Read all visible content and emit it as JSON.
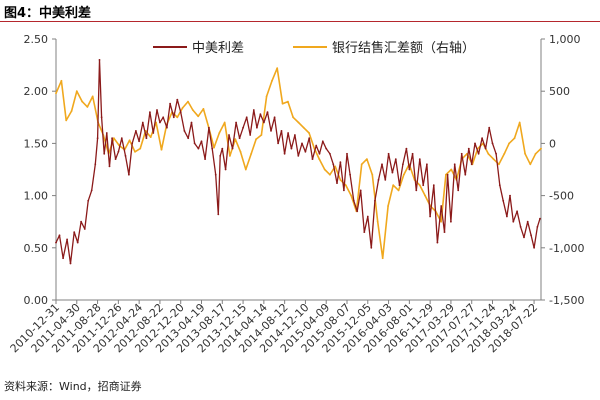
{
  "figure": {
    "title": "图4：中美利差",
    "source": "资料来源：Wind，招商证券"
  },
  "colors": {
    "accent": "#b5272d",
    "series1": "#8b1a1a",
    "series2": "#f0a81e",
    "axis": "#808080"
  },
  "chart_data": {
    "type": "line",
    "title": "",
    "xlabel": "",
    "ylabel": "",
    "legend_position": "top-center",
    "grid": false,
    "x_ticks": [
      "2010-12-31",
      "2011-04-30",
      "2011-08-28",
      "2011-12-26",
      "2012-04-24",
      "2012-08-22",
      "2012-12-20",
      "2013-04-19",
      "2013-08-17",
      "2013-12-15",
      "2014-04-14",
      "2014-08-12",
      "2014-12-10",
      "2015-04-09",
      "2015-08-07",
      "2015-12-05",
      "2016-04-03",
      "2016-08-01",
      "2016-11-29",
      "2017-03-29",
      "2017-07-27",
      "2017-11-24",
      "2018-03-24",
      "2018-07-22"
    ],
    "y_left": {
      "ylim": [
        0,
        2.5
      ],
      "ticks": [
        "0.00",
        "0.50",
        "1.00",
        "1.50",
        "2.00",
        "2.50"
      ]
    },
    "y_right": {
      "ylim": [
        -1500,
        1000
      ],
      "ticks": [
        "-1,500",
        "-1,000",
        "-500",
        "0",
        "500",
        "1,000"
      ]
    },
    "series": [
      {
        "name": "中美利差",
        "axis": "left",
        "x": [
          "2010-12-31",
          "2011-01-20",
          "2011-02-10",
          "2011-03-05",
          "2011-03-25",
          "2011-04-15",
          "2011-05-05",
          "2011-05-25",
          "2011-06-15",
          "2011-07-05",
          "2011-07-25",
          "2011-08-15",
          "2011-08-28",
          "2011-09-08",
          "2011-09-20",
          "2011-10-05",
          "2011-10-20",
          "2011-11-05",
          "2011-11-20",
          "2011-12-10",
          "2011-12-26",
          "2012-01-15",
          "2012-02-05",
          "2012-02-25",
          "2012-03-15",
          "2012-04-05",
          "2012-04-24",
          "2012-05-15",
          "2012-06-05",
          "2012-06-25",
          "2012-07-15",
          "2012-08-05",
          "2012-08-22",
          "2012-09-10",
          "2012-10-01",
          "2012-10-20",
          "2012-11-10",
          "2012-11-30",
          "2012-12-20",
          "2013-01-10",
          "2013-02-01",
          "2013-02-20",
          "2013-03-10",
          "2013-04-01",
          "2013-04-19",
          "2013-05-10",
          "2013-06-01",
          "2013-06-20",
          "2013-07-10",
          "2013-07-25",
          "2013-08-05",
          "2013-08-17",
          "2013-09-05",
          "2013-09-25",
          "2013-10-15",
          "2013-11-05",
          "2013-11-25",
          "2013-12-15",
          "2014-01-05",
          "2014-01-25",
          "2014-02-15",
          "2014-03-05",
          "2014-03-25",
          "2014-04-14",
          "2014-05-05",
          "2014-05-25",
          "2014-06-15",
          "2014-07-05",
          "2014-07-25",
          "2014-08-12",
          "2014-09-01",
          "2014-09-20",
          "2014-10-10",
          "2014-10-30",
          "2014-11-20",
          "2014-12-10",
          "2015-01-01",
          "2015-01-20",
          "2015-02-10",
          "2015-03-01",
          "2015-03-20",
          "2015-04-09",
          "2015-04-30",
          "2015-05-20",
          "2015-06-10",
          "2015-06-30",
          "2015-07-20",
          "2015-08-07",
          "2015-08-25",
          "2015-09-15",
          "2015-10-05",
          "2015-10-25",
          "2015-11-15",
          "2015-12-05",
          "2015-12-25",
          "2016-01-15",
          "2016-02-05",
          "2016-02-25",
          "2016-03-15",
          "2016-04-03",
          "2016-04-25",
          "2016-05-15",
          "2016-06-05",
          "2016-06-25",
          "2016-07-15",
          "2016-08-01",
          "2016-08-20",
          "2016-09-10",
          "2016-09-30",
          "2016-10-20",
          "2016-11-10",
          "2016-11-29",
          "2016-12-20",
          "2017-01-10",
          "2017-02-01",
          "2017-02-20",
          "2017-03-10",
          "2017-03-29",
          "2017-04-20",
          "2017-05-10",
          "2017-05-30",
          "2017-06-20",
          "2017-07-10",
          "2017-07-27",
          "2017-08-15",
          "2017-09-05",
          "2017-09-25",
          "2017-10-15",
          "2017-11-05",
          "2017-11-24",
          "2017-12-15",
          "2018-01-05",
          "2018-01-25",
          "2018-02-15",
          "2018-03-05",
          "2018-03-24",
          "2018-04-15",
          "2018-05-05",
          "2018-05-25",
          "2018-06-15",
          "2018-07-05",
          "2018-07-22",
          "2018-08-10",
          "2018-08-25"
        ],
        "values": [
          0.55,
          0.62,
          0.4,
          0.58,
          0.35,
          0.65,
          0.55,
          0.75,
          0.68,
          0.95,
          1.05,
          1.3,
          1.55,
          2.3,
          1.75,
          1.4,
          1.6,
          1.28,
          1.55,
          1.35,
          1.42,
          1.55,
          1.38,
          1.2,
          1.5,
          1.62,
          1.52,
          1.7,
          1.55,
          1.8,
          1.6,
          1.82,
          1.7,
          1.75,
          1.65,
          1.88,
          1.75,
          1.92,
          1.8,
          1.62,
          1.55,
          1.7,
          1.5,
          1.45,
          1.52,
          1.35,
          1.65,
          1.45,
          1.2,
          0.82,
          1.38,
          1.45,
          1.25,
          1.58,
          1.45,
          1.7,
          1.55,
          1.65,
          1.75,
          1.58,
          1.82,
          1.65,
          1.78,
          1.7,
          1.8,
          1.62,
          1.75,
          1.5,
          1.62,
          1.4,
          1.6,
          1.45,
          1.58,
          1.38,
          1.5,
          1.42,
          1.55,
          1.35,
          1.48,
          1.4,
          1.52,
          1.45,
          1.4,
          1.3,
          1.12,
          1.32,
          1.05,
          1.4,
          1.2,
          0.95,
          0.85,
          1.05,
          0.65,
          0.8,
          0.5,
          0.95,
          1.15,
          1.3,
          1.15,
          1.4,
          1.22,
          1.35,
          1.1,
          1.3,
          1.45,
          1.25,
          1.4,
          1.05,
          1.35,
          1.1,
          1.3,
          0.8,
          1.1,
          0.55,
          0.9,
          0.65,
          1.2,
          0.75,
          1.3,
          1.05,
          1.4,
          1.2,
          1.45,
          1.3,
          1.5,
          1.4,
          1.55,
          1.45,
          1.65,
          1.5,
          1.4,
          1.1,
          0.95,
          0.8,
          1.0,
          0.75,
          0.85,
          0.7,
          0.6,
          0.75,
          0.62,
          0.5,
          0.7,
          0.78
        ]
      },
      {
        "name": "银行结售汇差额（右轴）",
        "axis": "right",
        "x": [
          "2010-12-31",
          "2011-01-31",
          "2011-02-28",
          "2011-03-31",
          "2011-04-30",
          "2011-05-31",
          "2011-06-30",
          "2011-07-31",
          "2011-08-31",
          "2011-09-30",
          "2011-10-31",
          "2011-11-30",
          "2011-12-31",
          "2012-01-31",
          "2012-02-29",
          "2012-03-31",
          "2012-04-30",
          "2012-05-31",
          "2012-06-30",
          "2012-07-31",
          "2012-08-31",
          "2012-09-30",
          "2012-10-31",
          "2012-11-30",
          "2012-12-31",
          "2013-01-31",
          "2013-02-28",
          "2013-03-31",
          "2013-04-30",
          "2013-05-31",
          "2013-06-30",
          "2013-07-31",
          "2013-08-31",
          "2013-09-30",
          "2013-10-31",
          "2013-11-30",
          "2013-12-31",
          "2014-01-31",
          "2014-02-28",
          "2014-03-31",
          "2014-04-30",
          "2014-05-31",
          "2014-06-30",
          "2014-07-31",
          "2014-08-31",
          "2014-09-30",
          "2014-10-31",
          "2014-11-30",
          "2014-12-31",
          "2015-01-31",
          "2015-02-28",
          "2015-03-31",
          "2015-04-30",
          "2015-05-31",
          "2015-06-30",
          "2015-07-31",
          "2015-08-31",
          "2015-09-30",
          "2015-10-31",
          "2015-11-30",
          "2015-12-31",
          "2016-01-31",
          "2016-02-29",
          "2016-03-31",
          "2016-04-30",
          "2016-05-31",
          "2016-06-30",
          "2016-07-31",
          "2016-08-31",
          "2016-09-30",
          "2016-10-31",
          "2016-11-30",
          "2016-12-31",
          "2017-01-31",
          "2017-02-28",
          "2017-03-31",
          "2017-04-30",
          "2017-05-31",
          "2017-06-30",
          "2017-07-31",
          "2017-08-31",
          "2017-09-30",
          "2017-10-31",
          "2017-11-30",
          "2017-12-31",
          "2018-01-31",
          "2018-02-28",
          "2018-03-31",
          "2018-04-30",
          "2018-05-31",
          "2018-06-30",
          "2018-07-31",
          "2018-08-31"
        ],
        "values": [
          480,
          600,
          220,
          310,
          500,
          400,
          350,
          450,
          200,
          80,
          -100,
          50,
          -20,
          -60,
          30,
          -80,
          -50,
          120,
          60,
          200,
          -60,
          180,
          300,
          250,
          340,
          400,
          320,
          260,
          330,
          150,
          -40,
          100,
          200,
          -120,
          40,
          -80,
          -250,
          -100,
          40,
          80,
          450,
          600,
          720,
          380,
          400,
          250,
          200,
          150,
          100,
          -50,
          -150,
          -250,
          -300,
          -220,
          -350,
          -400,
          -500,
          -650,
          -200,
          -150,
          -300,
          -750,
          -1100,
          -600,
          -400,
          -450,
          -300,
          -200,
          -350,
          -400,
          -500,
          -600,
          -650,
          -750,
          -300,
          -250,
          -350,
          -150,
          -100,
          -200,
          -50,
          0,
          -100,
          -150,
          -200,
          -100,
          0,
          50,
          200,
          -100,
          -200,
          -100,
          -50
        ]
      }
    ]
  }
}
